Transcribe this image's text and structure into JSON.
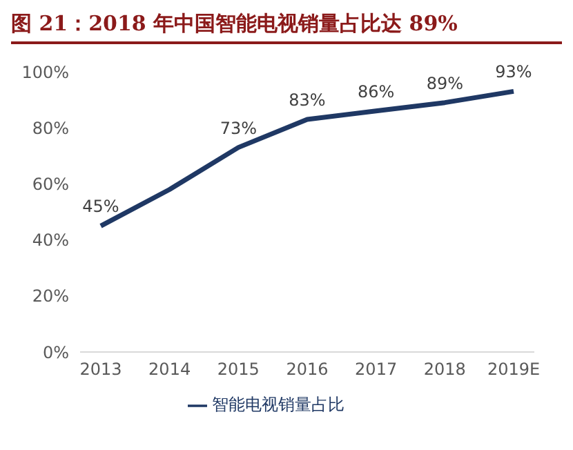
{
  "chart_data": {
    "type": "line",
    "title": "图 21：2018 年中国智能电视销量占比达 89%",
    "categories": [
      "2013",
      "2014",
      "2015",
      "2016",
      "2017",
      "2018",
      "2019E"
    ],
    "series": [
      {
        "name": "智能电视销量占比",
        "color": "#1f3864",
        "values": [
          45,
          58,
          73,
          83,
          86,
          89,
          93
        ],
        "value_labels": [
          "45%",
          null,
          "73%",
          "83%",
          "86%",
          "89%",
          "93%"
        ]
      }
    ],
    "ylim": [
      0,
      100
    ],
    "yticks": [
      {
        "value": 0,
        "label": "0%"
      },
      {
        "value": 20,
        "label": "20%"
      },
      {
        "value": 40,
        "label": "40%"
      },
      {
        "value": 60,
        "label": "60%"
      },
      {
        "value": 80,
        "label": "80%"
      },
      {
        "value": 100,
        "label": "100%"
      }
    ],
    "grid": false,
    "legend": "bottom",
    "marker": "none",
    "line_style": "solid"
  }
}
